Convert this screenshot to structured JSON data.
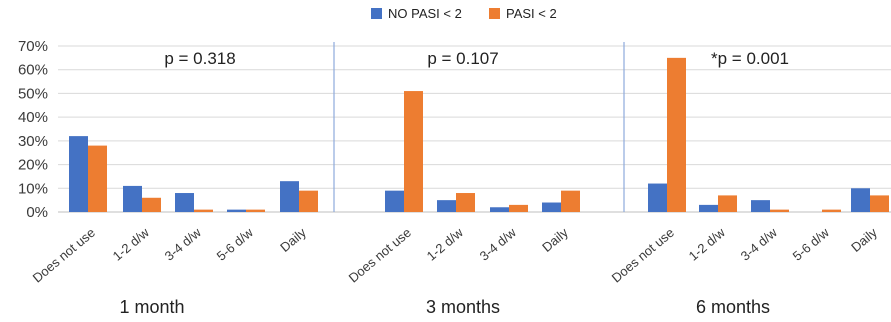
{
  "chart_data": {
    "type": "bar",
    "title": "",
    "xlabel": "",
    "ylabel": "",
    "ylim": [
      0,
      70
    ],
    "yticks": [
      "0%",
      "10%",
      "20%",
      "30%",
      "40%",
      "50%",
      "60%",
      "70%"
    ],
    "grid": true,
    "legend_position": "top-center",
    "colors": {
      "no_pasi": "#4472C4",
      "pasi": "#ED7D31",
      "grid": "#d9d9d9",
      "divider": "#8eaadb"
    },
    "legend": [
      "NO PASI < 2",
      "PASI < 2"
    ],
    "groups": [
      {
        "label": "1 month",
        "p_value": "p = 0.318",
        "categories": [
          "Does not use",
          "1-2 d/w",
          "3-4 d/w",
          "5-6 d/w",
          "Daily"
        ],
        "series": [
          {
            "name": "NO PASI < 2",
            "values": [
              32,
              11,
              8,
              1,
              13
            ]
          },
          {
            "name": "PASI < 2",
            "values": [
              28,
              6,
              1,
              1,
              9
            ]
          }
        ]
      },
      {
        "label": "3 months",
        "p_value": "p = 0.107",
        "categories": [
          "Does not use",
          "1-2 d/w",
          "3-4 d/w",
          "Daily"
        ],
        "series": [
          {
            "name": "NO PASI < 2",
            "values": [
              9,
              5,
              2,
              4
            ]
          },
          {
            "name": "PASI < 2",
            "values": [
              51,
              8,
              3,
              9
            ]
          }
        ]
      },
      {
        "label": "6 months",
        "p_value": "*p = 0.001",
        "categories": [
          "Does not use",
          "1-2 d/w",
          "3-4 d/w",
          "5-6 d/w",
          "Daily"
        ],
        "series": [
          {
            "name": "NO PASI < 2",
            "values": [
              12,
              3,
              5,
              0,
              10
            ]
          },
          {
            "name": "PASI < 2",
            "values": [
              65,
              7,
              1,
              1,
              7
            ]
          }
        ]
      }
    ]
  }
}
